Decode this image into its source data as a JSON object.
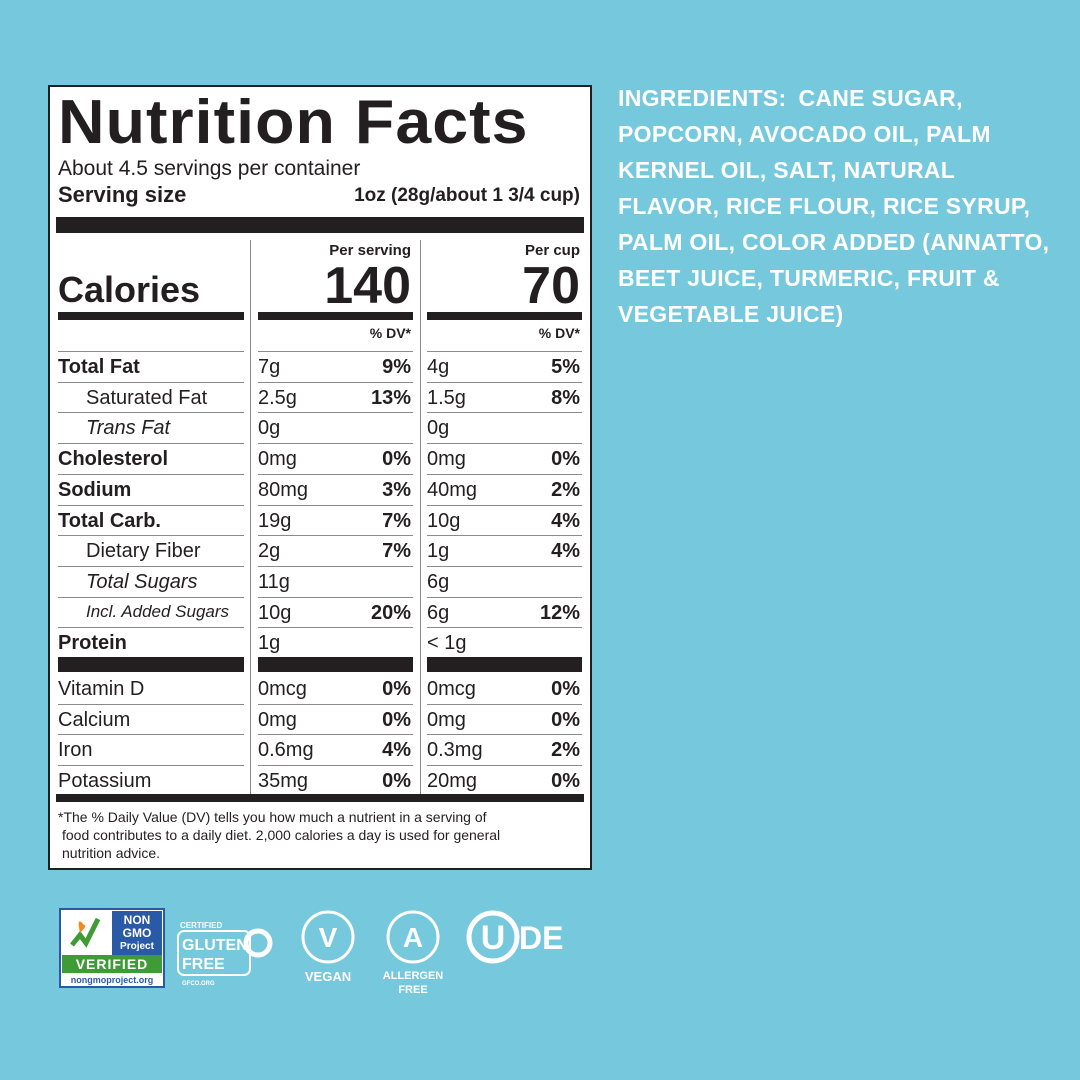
{
  "label": {
    "title": "Nutrition Facts",
    "servings": "About 4.5 servings per container",
    "serving_size_label": "Serving size",
    "serving_size": "1oz (28g/about 1 3/4 cup)",
    "calories_label": "Calories",
    "columns": [
      {
        "header": "Per serving",
        "calories": "140"
      },
      {
        "header": "Per cup",
        "calories": "70"
      }
    ],
    "dv_header": "% DV*",
    "rows": [
      {
        "name": "Total Fat",
        "cells": [
          [
            "7g",
            "9%"
          ],
          [
            "4g",
            "5%"
          ]
        ]
      },
      {
        "name": "Saturated Fat",
        "cells": [
          [
            "2.5g",
            "13%"
          ],
          [
            "1.5g",
            "8%"
          ]
        ]
      },
      {
        "name": "Trans Fat",
        "cells": [
          [
            "0g"
          ],
          [
            "0g"
          ]
        ]
      },
      {
        "name": "Cholesterol",
        "cells": [
          [
            "0mg",
            "0%"
          ],
          [
            "0mg",
            "0%"
          ]
        ]
      },
      {
        "name": "Sodium",
        "cells": [
          [
            "80mg",
            "3%"
          ],
          [
            "40mg",
            "2%"
          ]
        ]
      },
      {
        "name": "Total Carb.",
        "cells": [
          [
            "19g",
            "7%"
          ],
          [
            "10g",
            "4%"
          ]
        ]
      },
      {
        "name": "Dietary Fiber",
        "cells": [
          [
            "2g",
            "7%"
          ],
          [
            "1g",
            "4%"
          ]
        ]
      },
      {
        "name": "Total Sugars",
        "cells": [
          [
            "11g"
          ],
          [
            "6g"
          ]
        ]
      },
      {
        "name": "Incl. Added Sugars",
        "cells": [
          [
            "10g",
            "20%"
          ],
          [
            "6g",
            "12%"
          ]
        ]
      },
      {
        "name": "Protein",
        "cells": [
          [
            "1g"
          ],
          [
            "< 1g"
          ]
        ]
      }
    ],
    "vitamins": [
      {
        "name": "Vitamin D",
        "cells": [
          [
            "0mcg",
            "0%"
          ],
          [
            "0mcg",
            "0%"
          ]
        ]
      },
      {
        "name": "Calcium",
        "cells": [
          [
            "0mg",
            "0%"
          ],
          [
            "0mg",
            "0%"
          ]
        ]
      },
      {
        "name": "Iron",
        "cells": [
          [
            "0.6mg",
            "4%"
          ],
          [
            "0.3mg",
            "2%"
          ]
        ]
      },
      {
        "name": "Potassium",
        "cells": [
          [
            "35mg",
            "0%"
          ],
          [
            "20mg",
            "0%"
          ]
        ]
      }
    ],
    "footnote": [
      "*The % Daily Value (DV) tells you how much a nutrient in a serving of",
      "food contributes to a daily diet. 2,000 calories a day is used for general",
      "nutrition advice."
    ]
  },
  "ingredients": {
    "label": "INGREDIENTS:",
    "text": "CANE SUGAR, POPCORN, AVOCADO OIL, PALM KERNEL OIL, SALT, NATURAL FLAVOR, RICE FLOUR, RICE SYRUP, PALM OIL, COLOR ADDED (ANNATTO, BEET JUICE, TURMERIC, FRUIT & VEGETABLE JUICE)"
  },
  "badges": {
    "non_gmo": [
      "NON",
      "GMO",
      "Project",
      "VERIFIED",
      "nongmoproject.org"
    ],
    "gluten_free": [
      "CERTIFIED",
      "GLUTEN",
      "FREE",
      "GFCO.ORG"
    ],
    "vegan": [
      "V",
      "VEGAN"
    ],
    "allergen_free": [
      "A",
      "ALLERGEN",
      "FREE"
    ],
    "kosher": [
      "U",
      "DE"
    ]
  }
}
